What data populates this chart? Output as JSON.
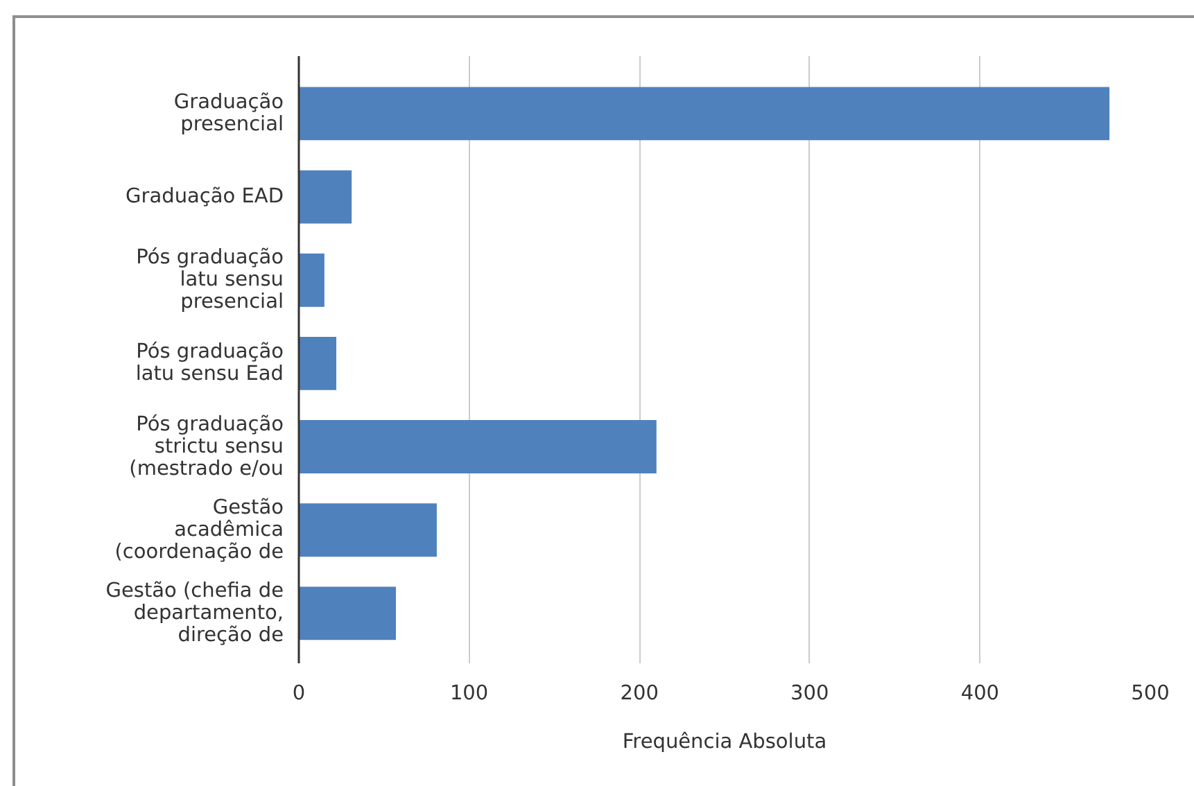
{
  "chart_data": {
    "type": "bar",
    "orientation": "horizontal",
    "categories": [
      "Graduação\npresencial",
      "Graduação EAD",
      "Pós graduação\nlatu sensu\npresencial",
      "Pós graduação\nlatu sensu Ead",
      "Pós graduação\nstrictu sensu\n(mestrado e/ou",
      "Gestão\nacadêmica\n(coordenação de",
      "Gestão (chefia de\ndepartamento,\ndireção de"
    ],
    "values": [
      476,
      31,
      15,
      22,
      210,
      81,
      57
    ],
    "color": "#4f81bd",
    "xlabel": "Frequência Absoluta",
    "xlim": [
      0,
      500
    ],
    "xticks": [
      0,
      100,
      200,
      300,
      400,
      500
    ],
    "grid": "x"
  }
}
